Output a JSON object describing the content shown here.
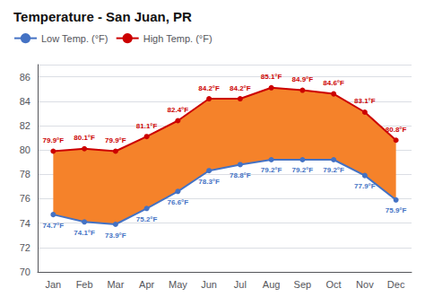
{
  "chart_data": {
    "type": "line",
    "title": "Temperature - San Juan, PR",
    "categories": [
      "Jan",
      "Feb",
      "Mar",
      "Apr",
      "May",
      "Jun",
      "Jul",
      "Aug",
      "Sep",
      "Oct",
      "Nov",
      "Dec"
    ],
    "series": [
      {
        "name": "Low Temp. (°F)",
        "color": "#4472c4",
        "marker": "circle",
        "values": [
          74.7,
          74.1,
          73.9,
          75.2,
          76.6,
          78.3,
          78.8,
          79.2,
          79.2,
          79.2,
          77.9,
          75.9
        ],
        "value_labels": [
          "74.7°F",
          "74.1°F",
          "73.9°F",
          "75.2°F",
          "76.6°F",
          "78.3°F",
          "78.8°F",
          "79.2°F",
          "79.2°F",
          "79.2°F",
          "77.9°F",
          "75.9°F"
        ]
      },
      {
        "name": "High Temp. (°F)",
        "color": "#cc0000",
        "marker": "circle",
        "values": [
          79.9,
          80.1,
          79.9,
          81.1,
          82.4,
          84.2,
          84.2,
          85.1,
          84.9,
          84.6,
          83.1,
          80.8
        ],
        "value_labels": [
          "79.9°F",
          "80.1°F",
          "79.9°F",
          "81.1°F",
          "82.4°F",
          "84.2°F",
          "84.2°F",
          "85.1°F",
          "84.9°F",
          "84.6°F",
          "83.1°F",
          "80.8°F"
        ]
      }
    ],
    "color": "#f5822a",
    "ylim": [
      70,
      87
    ],
    "yticks": [
      70,
      72,
      74,
      76,
      78,
      80,
      82,
      84,
      86
    ],
    "grid": true,
    "legend": "upper left",
    "data_labels": true
  }
}
